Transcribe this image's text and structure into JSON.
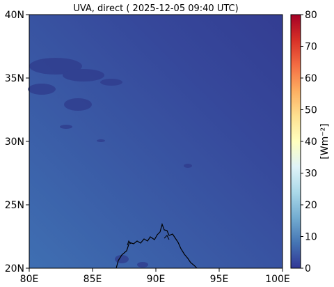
{
  "title": "UVA, direct ( 2025-12-05 09:40 UTC)",
  "map": {
    "lat_ticks": [
      "40N",
      "35N",
      "30N",
      "25N",
      "20N"
    ],
    "lon_ticks": [
      "80E",
      "85E",
      "90E",
      "95E",
      "100E"
    ]
  },
  "colorbar": {
    "label": "[Wm⁻²]",
    "ticks": [
      "80",
      "70",
      "60",
      "50",
      "40",
      "30",
      "20",
      "10",
      "0"
    ],
    "min": 0,
    "max": 80,
    "colormap": [
      "#313695",
      "#4575b4",
      "#74add1",
      "#abd9e9",
      "#e0f3f8",
      "#ffffbf",
      "#fee090",
      "#fdae61",
      "#f46d43",
      "#d73027",
      "#a50026"
    ]
  }
}
